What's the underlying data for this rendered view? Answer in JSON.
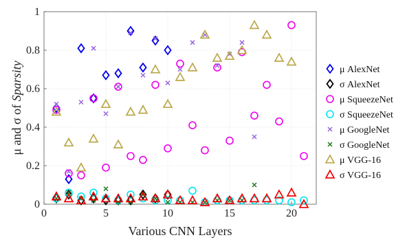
{
  "chart_data": {
    "type": "scatter",
    "xlabel": "Various CNN Layers",
    "ylabel_prefix": "μ and σ of ",
    "ylabel_italic": "Sparsity",
    "xlim": [
      0,
      22
    ],
    "ylim": [
      0,
      1
    ],
    "xticks": [
      0,
      5,
      10,
      15,
      20
    ],
    "yticks": [
      0,
      0.2,
      0.4,
      0.6,
      0.8,
      1
    ],
    "ytick_labels": [
      "0",
      "0.2",
      "0.4",
      "0.6",
      "0.8",
      "1"
    ],
    "grid": true,
    "legend_position": "right",
    "series": [
      {
        "name": "μ AlexNet",
        "marker": "diamond",
        "color": "#0000ee",
        "x": [
          1,
          2,
          3,
          4,
          5,
          6,
          7,
          8,
          9,
          10
        ],
        "y": [
          0.5,
          0.13,
          0.81,
          0.55,
          0.67,
          0.68,
          0.9,
          0.71,
          0.85,
          0.8
        ]
      },
      {
        "name": "σ AlexNet",
        "marker": "diamond",
        "color": "#000000",
        "x": [
          1,
          2,
          3,
          4,
          5,
          6,
          7,
          8,
          9,
          10
        ],
        "y": [
          0.03,
          0.05,
          0.02,
          0.03,
          0.02,
          0.02,
          0.02,
          0.05,
          0.03,
          0.05
        ]
      },
      {
        "name": "μ SqueezeNet",
        "marker": "circle",
        "color": "#ee00ee",
        "x": [
          1,
          2,
          3,
          4,
          5,
          6,
          7,
          8,
          9,
          10,
          11,
          12,
          13,
          14,
          15,
          16,
          17,
          18,
          19,
          20,
          21
        ],
        "y": [
          0.49,
          0.16,
          0.15,
          0.55,
          0.19,
          0.61,
          0.25,
          0.23,
          0.62,
          0.29,
          0.73,
          0.41,
          0.28,
          0.71,
          0.33,
          0.79,
          0.46,
          0.62,
          0.43,
          0.93,
          0.25
        ]
      },
      {
        "name": "σ SqueezeNet",
        "marker": "circle",
        "color": "#00e5ee",
        "x": [
          1,
          2,
          3,
          4,
          5,
          6,
          7,
          8,
          9,
          10,
          11,
          12,
          13,
          14,
          15,
          16,
          17,
          18,
          19,
          20,
          21
        ],
        "y": [
          0.03,
          0.06,
          0.04,
          0.06,
          0.03,
          0.02,
          0.05,
          0.03,
          0.02,
          0.02,
          0.02,
          0.07,
          0.01,
          0.02,
          0.02,
          0.02,
          0.02,
          0.02,
          0.02,
          0.01,
          0.02
        ]
      },
      {
        "name": "μ GoogleNet",
        "marker": "x",
        "color": "#9966dd",
        "x": [
          1,
          2,
          3,
          4,
          5,
          6,
          7,
          8,
          9,
          10,
          11,
          12,
          13,
          14,
          15,
          16,
          17
        ],
        "y": [
          0.52,
          0.17,
          0.53,
          0.81,
          0.47,
          0.61,
          0.89,
          0.67,
          0.86,
          0.63,
          0.7,
          0.84,
          0.88,
          0.72,
          0.78,
          0.84,
          0.35
        ]
      },
      {
        "name": "σ GoogleNet",
        "marker": "x",
        "color": "#227722",
        "x": [
          1,
          2,
          3,
          4,
          5,
          6,
          7,
          8,
          9,
          10,
          11,
          12,
          13,
          14,
          15,
          16,
          17
        ],
        "y": [
          0.03,
          0.06,
          0.03,
          0.02,
          0.08,
          0.01,
          0.01,
          0.05,
          0.03,
          0.01,
          0.01,
          0.01,
          0.01,
          0.02,
          0.02,
          0.02,
          0.1
        ]
      },
      {
        "name": "μ VGG-16",
        "marker": "triangle",
        "color": "#bba84a",
        "x": [
          1,
          2,
          3,
          4,
          5,
          6,
          7,
          8,
          9,
          10,
          11,
          12,
          13,
          14,
          15,
          16,
          17,
          18,
          19,
          20
        ],
        "y": [
          0.48,
          0.32,
          0.19,
          0.34,
          0.52,
          0.31,
          0.48,
          0.49,
          0.7,
          0.52,
          0.66,
          0.71,
          0.88,
          0.76,
          0.77,
          0.8,
          0.93,
          0.88,
          0.76,
          0.74
        ]
      },
      {
        "name": "σ VGG-16",
        "marker": "triangle",
        "color": "#ee0000",
        "x": [
          1,
          2,
          3,
          4,
          5,
          6,
          7,
          8,
          9,
          10,
          11,
          12,
          13,
          14,
          15,
          16,
          17,
          18,
          19,
          20,
          21
        ],
        "y": [
          0.04,
          0.03,
          0.02,
          0.04,
          0.03,
          0.03,
          0.03,
          0.04,
          0.03,
          0.05,
          0.02,
          0.02,
          0.01,
          0.03,
          0.02,
          0.03,
          0.03,
          0.03,
          0.05,
          0.06,
          0.0
        ]
      }
    ]
  }
}
